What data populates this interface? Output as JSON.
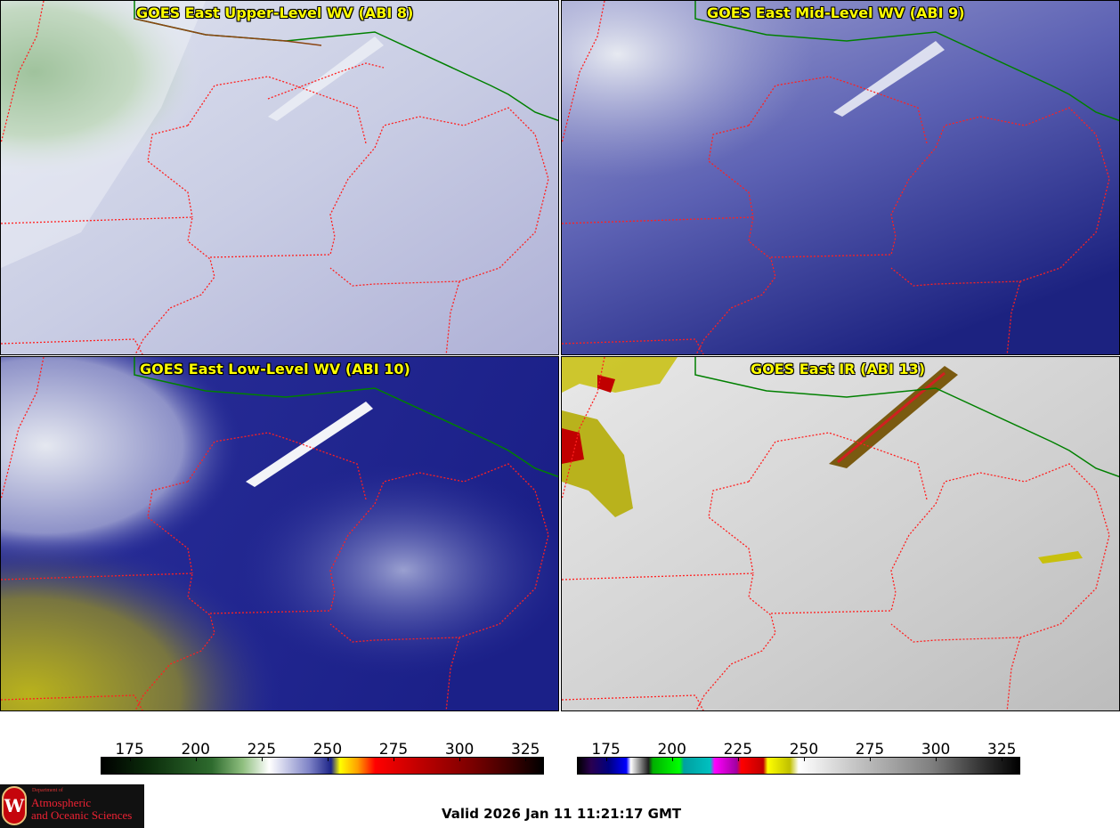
{
  "panels": [
    {
      "title": "GOES East Upper-Level WV (ABI 8)"
    },
    {
      "title": "GOES East Mid-Level WV (ABI 9)"
    },
    {
      "title": "GOES East Low-Level WV (ABI 10)"
    },
    {
      "title": "GOES East IR (ABI 13)"
    }
  ],
  "colorbars": {
    "wv": {
      "ticks": [
        "175",
        "200",
        "225",
        "250",
        "275",
        "300",
        "325"
      ],
      "tick_values": [
        175,
        200,
        225,
        250,
        275,
        300,
        325
      ],
      "min": 164,
      "max": 332
    },
    "ir": {
      "ticks": [
        "175",
        "200",
        "225",
        "250",
        "275",
        "300",
        "325"
      ],
      "tick_values": [
        175,
        200,
        225,
        250,
        275,
        300,
        325
      ],
      "min": 164,
      "max": 332
    }
  },
  "valid_time": "Valid 2026 Jan 11 11:21:17 GMT",
  "logo": {
    "seal_letter": "W",
    "small_text": "Department of",
    "line1": "Atmospheric",
    "line2": "and Oceanic Sciences"
  },
  "colors": {
    "state_border": "#ff2020",
    "country_border": "#8b4513",
    "province_border": "#008000",
    "title_text": "#ffff00"
  }
}
